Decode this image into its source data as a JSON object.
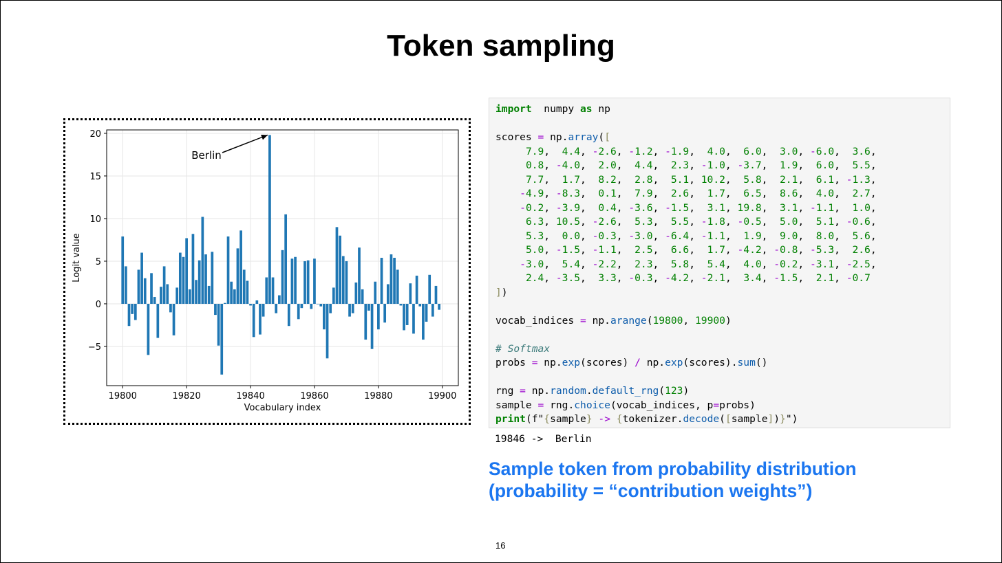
{
  "slide": {
    "title": "Token sampling",
    "note_line1": "Sample token from probability distribution",
    "note_line2": "(probability = “contribution weights”)",
    "page_number": "16"
  },
  "code": {
    "line_import": [
      [
        "kw",
        "import"
      ],
      [
        "",
        "  numpy "
      ],
      [
        "kw",
        "as"
      ],
      [
        "",
        " np"
      ]
    ],
    "line_scores_open": [
      [
        "",
        "scores "
      ],
      [
        "op",
        "="
      ],
      [
        "",
        " np."
      ],
      [
        "fn",
        "array"
      ],
      [
        "",
        "("
      ],
      [
        "br",
        "["
      ]
    ],
    "rows": [
      "7.9,  4.4, -2.6, -1.2, -1.9,  4.0,  6.0,  3.0, -6.0,  3.6,",
      "0.8, -4.0,  2.0,  4.4,  2.3, -1.0, -3.7,  1.9,  6.0,  5.5,",
      "7.7,  1.7,  8.2,  2.8,  5.1, 10.2,  5.8,  2.1,  6.1, -1.3,",
      "-4.9, -8.3,  0.1,  7.9,  2.6,  1.7,  6.5,  8.6,  4.0,  2.7,",
      "-0.2, -3.9,  0.4, -3.6, -1.5,  3.1, 19.8,  3.1, -1.1,  1.0,",
      "6.3, 10.5, -2.6,  5.3,  5.5, -1.8, -0.5,  5.0,  5.1, -0.6,",
      "5.3,  0.0, -0.3, -3.0, -6.4, -1.1,  1.9,  9.0,  8.0,  5.6,",
      "5.0, -1.5, -1.1,  2.5,  6.6,  1.7, -4.2, -0.8, -5.3,  2.6,",
      "-3.0,  5.4, -2.2,  2.3,  5.8,  5.4,  4.0, -0.2, -3.1, -2.5,",
      "2.4, -3.5,  3.3, -0.3, -4.2, -2.1,  3.4, -1.5,  2.1, -0.7"
    ],
    "line_close": [
      [
        "br",
        "]"
      ],
      [
        "",
        ")"
      ]
    ],
    "line_vocab": [
      [
        "",
        "vocab_indices "
      ],
      [
        "op",
        "="
      ],
      [
        "",
        " np."
      ],
      [
        "fn",
        "arange"
      ],
      [
        "",
        "("
      ],
      [
        "num",
        "19800"
      ],
      [
        "",
        ", "
      ],
      [
        "num",
        "19900"
      ],
      [
        "",
        ")"
      ]
    ],
    "line_comment": [
      [
        "cm",
        "# Softmax"
      ]
    ],
    "line_probs": [
      [
        "",
        "probs "
      ],
      [
        "op",
        "="
      ],
      [
        "",
        " np."
      ],
      [
        "fn",
        "exp"
      ],
      [
        "",
        "(scores) "
      ],
      [
        "op",
        "/"
      ],
      [
        "",
        " np."
      ],
      [
        "fn",
        "exp"
      ],
      [
        "",
        "(scores)."
      ],
      [
        "fn",
        "sum"
      ],
      [
        "",
        "()"
      ]
    ],
    "line_rng": [
      [
        "",
        "rng "
      ],
      [
        "op",
        "="
      ],
      [
        "",
        " np."
      ],
      [
        "fn",
        "random"
      ],
      [
        "",
        "."
      ],
      [
        "fn",
        "default_rng"
      ],
      [
        "",
        "("
      ],
      [
        "num",
        "123"
      ],
      [
        "",
        ")"
      ]
    ],
    "line_sample": [
      [
        "",
        "sample "
      ],
      [
        "op",
        "="
      ],
      [
        "",
        " rng."
      ],
      [
        "fn",
        "choice"
      ],
      [
        "",
        "(vocab_indices, p"
      ],
      [
        "op",
        "="
      ],
      [
        "",
        "probs)"
      ]
    ],
    "line_print": [
      [
        "kw",
        "print"
      ],
      [
        "",
        "(f\""
      ],
      [
        "br",
        "{"
      ],
      [
        "",
        "sample"
      ],
      [
        "br",
        "}"
      ],
      [
        "",
        " "
      ],
      [
        "op",
        "->"
      ],
      [
        "",
        " "
      ],
      [
        "br",
        "{"
      ],
      [
        "",
        "tokenizer."
      ],
      [
        "fn",
        "decode"
      ],
      [
        "",
        "("
      ],
      [
        "br",
        "["
      ],
      [
        "",
        "sample"
      ],
      [
        "br",
        "]"
      ],
      [
        "",
        ")"
      ],
      [
        "br",
        "}"
      ],
      [
        "",
        "\")"
      ]
    ],
    "output": "19846 ->  Berlin"
  },
  "chart_data": {
    "type": "bar",
    "title": "",
    "xlabel": "Vocabulary index",
    "ylabel": "Logit value",
    "x_start": 19800,
    "values": [
      7.9,
      4.4,
      -2.6,
      -1.2,
      -1.9,
      4.0,
      6.0,
      3.0,
      -6.0,
      3.6,
      0.8,
      -4.0,
      2.0,
      4.4,
      2.3,
      -1.0,
      -3.7,
      1.9,
      6.0,
      5.5,
      7.7,
      1.7,
      8.2,
      2.8,
      5.1,
      10.2,
      5.8,
      2.1,
      6.1,
      -1.3,
      -4.9,
      -8.3,
      0.1,
      7.9,
      2.6,
      1.7,
      6.5,
      8.6,
      4.0,
      2.7,
      -0.2,
      -3.9,
      0.4,
      -3.6,
      -1.5,
      3.1,
      19.8,
      3.1,
      -1.1,
      1.0,
      6.3,
      10.5,
      -2.6,
      5.3,
      5.5,
      -1.8,
      -0.5,
      5.0,
      5.1,
      -0.6,
      5.3,
      0.0,
      -0.3,
      -3.0,
      -6.4,
      -1.1,
      1.9,
      9.0,
      8.0,
      5.6,
      5.0,
      -1.5,
      -1.1,
      2.5,
      6.6,
      1.7,
      -4.2,
      -0.8,
      -5.3,
      2.6,
      -3.0,
      5.4,
      -2.2,
      2.3,
      5.8,
      5.4,
      4.0,
      -0.2,
      -3.1,
      -2.5,
      2.4,
      -3.5,
      3.3,
      -0.3,
      -4.2,
      -2.1,
      3.4,
      -1.5,
      2.1,
      -0.7
    ],
    "xlim": [
      19795,
      19905
    ],
    "ylim": [
      -9.6,
      20.4
    ],
    "xticks": [
      19800,
      19820,
      19840,
      19860,
      19880,
      19900
    ],
    "yticks": [
      -5,
      0,
      5,
      10,
      15,
      20
    ],
    "ytick_labels": [
      "−5",
      "0",
      "5",
      "10",
      "15",
      "20"
    ],
    "grid": true,
    "bar_color": "#1f77b4",
    "annotation": {
      "text": "Berlin",
      "x": 19846,
      "y": 19.8
    }
  }
}
